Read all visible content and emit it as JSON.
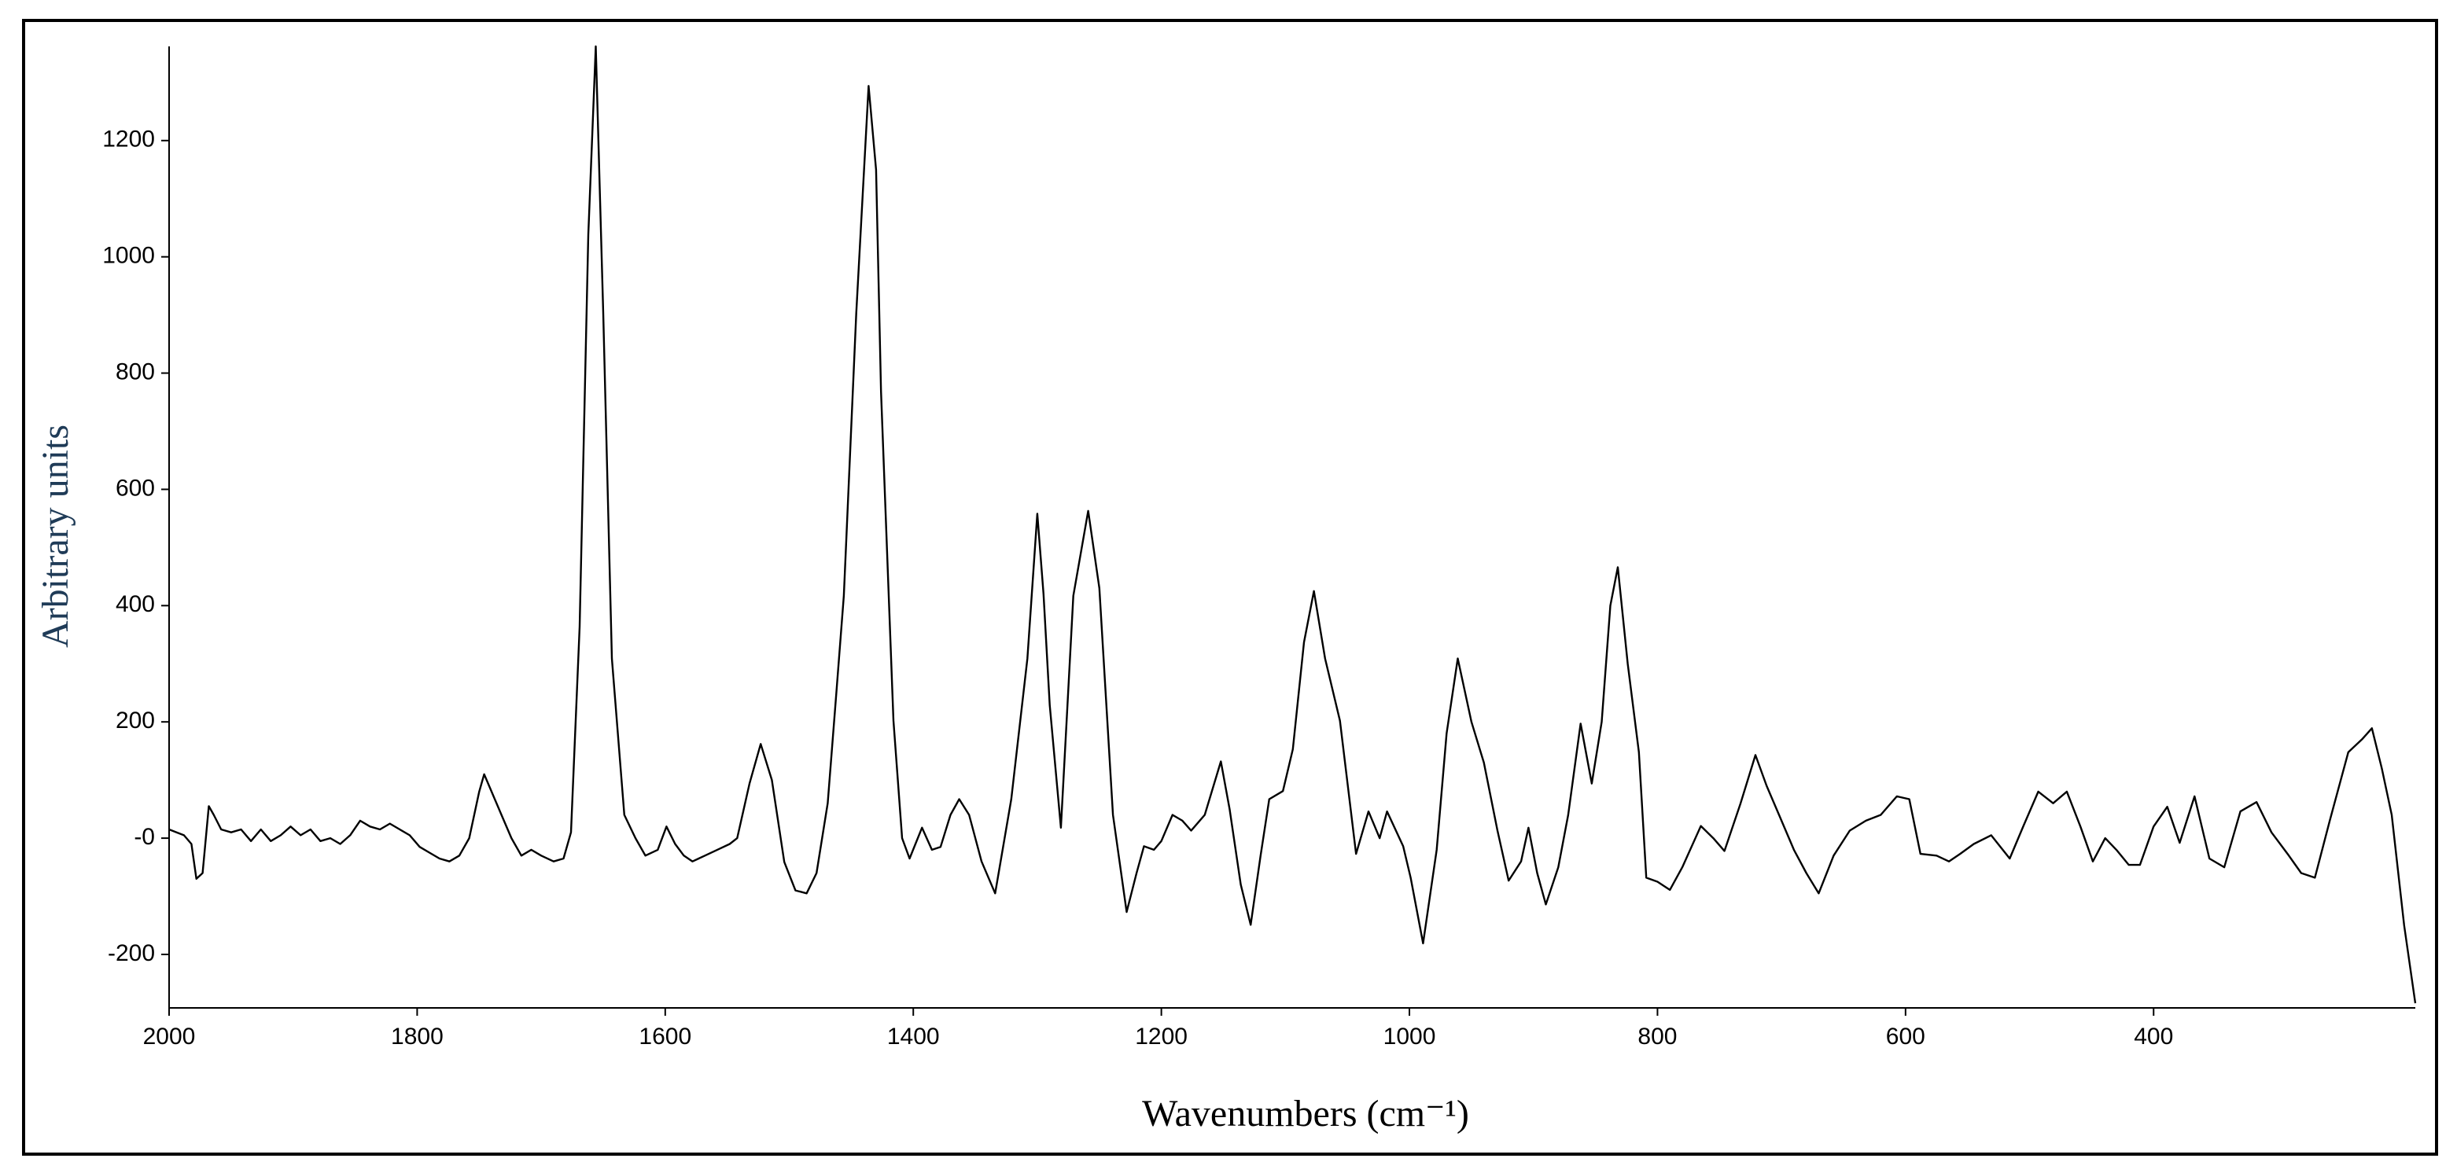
{
  "chart_data": {
    "type": "line",
    "x_label": "Wavenumbers (cm⁻¹)",
    "y_label": "Arbitrary units",
    "color": "#000000",
    "xlim": [
      2000,
      189
    ],
    "ylim": [
      -292,
      1362
    ],
    "xticks": [
      2000,
      1800,
      1600,
      1400,
      1200,
      1000,
      800,
      600,
      400
    ],
    "yticks": [
      -200,
      {
        "value": 0,
        "label": "-0"
      },
      200,
      400,
      600,
      800,
      1000,
      1200
    ],
    "x": [
      2000,
      1994,
      1988,
      1982,
      1978,
      1973,
      1968,
      1964,
      1958,
      1950,
      1942,
      1934,
      1926,
      1918,
      1910,
      1902,
      1894,
      1886,
      1878,
      1870,
      1862,
      1854,
      1846,
      1838,
      1830,
      1822,
      1814,
      1806,
      1798,
      1790,
      1782,
      1774,
      1766,
      1758,
      1750,
      1746,
      1740,
      1732,
      1724,
      1716,
      1708,
      1700,
      1690,
      1682,
      1676,
      1669,
      1662,
      1656,
      1650,
      1643,
      1633,
      1624,
      1616,
      1606,
      1599,
      1592,
      1585,
      1578,
      1568,
      1558,
      1548,
      1542,
      1532,
      1523,
      1514,
      1504,
      1495,
      1486,
      1478,
      1469,
      1462,
      1456,
      1446,
      1436,
      1430,
      1426,
      1416,
      1409,
      1403,
      1393,
      1385,
      1378,
      1370,
      1363,
      1355,
      1345,
      1334,
      1321,
      1308,
      1300,
      1295,
      1290,
      1281,
      1271,
      1259,
      1250,
      1239,
      1228,
      1220,
      1214,
      1206,
      1200,
      1191,
      1183,
      1176,
      1165,
      1152,
      1145,
      1136,
      1128,
      1120,
      1113,
      1102,
      1094,
      1085,
      1077,
      1068,
      1056,
      1043,
      1033,
      1024,
      1018,
      1005,
      999,
      989,
      978,
      970,
      961,
      950,
      940,
      929,
      920,
      910,
      904,
      897,
      890,
      880,
      872,
      862,
      853,
      845,
      838,
      832,
      824,
      815,
      809,
      800,
      790,
      780,
      765,
      755,
      746,
      733,
      721,
      712,
      702,
      690,
      680,
      670,
      658,
      645,
      632,
      620,
      607,
      597,
      588,
      575,
      565,
      556,
      545,
      531,
      516,
      505,
      493,
      481,
      470,
      459,
      449,
      439,
      430,
      420,
      411,
      400,
      389,
      379,
      367,
      355,
      343,
      330,
      317,
      305,
      292,
      281,
      270,
      258,
      243,
      232,
      224,
      216,
      208,
      198,
      189
    ],
    "values": [
      15,
      10,
      5,
      -10,
      -70,
      -60,
      55,
      40,
      15,
      10,
      15,
      -5,
      15,
      -5,
      5,
      20,
      5,
      15,
      -5,
      0,
      -10,
      5,
      30,
      20,
      15,
      25,
      15,
      5,
      -15,
      -25,
      -35,
      -40,
      -30,
      0,
      80,
      110,
      80,
      40,
      0,
      -30,
      -20,
      -30,
      -40,
      -35,
      10,
      364,
      1038,
      1362,
      903,
      309,
      40,
      0,
      -30,
      -20,
      20,
      -10,
      -30,
      -40,
      -30,
      -20,
      -10,
      0,
      94,
      162,
      100,
      -41,
      -90,
      -95,
      -60,
      60,
      250,
      417,
      903,
      1294,
      1150,
      768,
      202,
      0,
      -35,
      18,
      -20,
      -15,
      40,
      67,
      40,
      -40,
      -95,
      67,
      309,
      558,
      420,
      229,
      18,
      417,
      563,
      430,
      40,
      -127,
      -60,
      -14,
      -20,
      -5,
      40,
      30,
      13,
      40,
      132,
      50,
      -80,
      -149,
      -30,
      67,
      81,
      153,
      337,
      425,
      309,
      202,
      -27,
      46,
      0,
      46,
      -14,
      -68,
      -181,
      -20,
      180,
      309,
      200,
      130,
      13,
      -73,
      -40,
      18,
      -60,
      -114,
      -50,
      40,
      197,
      94,
      200,
      400,
      466,
      300,
      148,
      -68,
      -75,
      -89,
      -50,
      21,
      0,
      -22,
      60,
      143,
      90,
      40,
      -20,
      -60,
      -95,
      -30,
      13,
      30,
      40,
      72,
      67,
      -27,
      -30,
      -40,
      -27,
      -10,
      5,
      -35,
      21,
      80,
      60,
      80,
      20,
      -40,
      0,
      -20,
      -46,
      -46,
      20,
      54,
      -8,
      72,
      -35,
      -50,
      46,
      62,
      10,
      -27,
      -60,
      -68,
      30,
      148,
      170,
      189,
      120,
      40,
      -150,
      -284
    ]
  }
}
